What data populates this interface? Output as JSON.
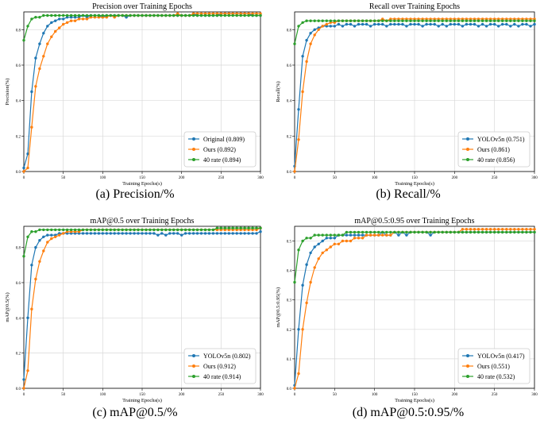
{
  "chart_data": [
    {
      "type": "line",
      "title": "Precision over Training Epochs",
      "xlabel": "Training Epochs(s)",
      "ylabel": "Precision(%)",
      "caption": "(a) Precision/%",
      "xlim": [
        0,
        300
      ],
      "ylim": [
        0,
        0.9
      ],
      "xticks": [
        "0",
        "50",
        "100",
        "150",
        "200",
        "250",
        "300"
      ],
      "yticks": [
        "0.0",
        "0.2",
        "0.4",
        "0.6",
        "0.8"
      ],
      "grid": true,
      "legend_position": "bottom-right",
      "x_start": 0,
      "x_end": 300,
      "step": 5,
      "series": [
        {
          "name": "Original (0.809)",
          "color": "#1f77b4",
          "values": [
            0.02,
            0.1,
            0.45,
            0.64,
            0.72,
            0.78,
            0.82,
            0.84,
            0.85,
            0.86,
            0.86,
            0.87,
            0.87,
            0.87,
            0.87,
            0.88,
            0.87,
            0.88,
            0.88,
            0.88,
            0.87,
            0.88,
            0.88,
            0.88,
            0.88,
            0.88,
            0.87,
            0.88,
            0.88,
            0.88,
            0.88,
            0.88,
            0.88,
            0.88,
            0.88,
            0.88,
            0.88,
            0.88,
            0.88,
            0.88,
            0.88,
            0.88,
            0.88,
            0.89,
            0.88,
            0.88,
            0.88,
            0.88,
            0.88,
            0.88,
            0.89,
            0.89,
            0.89,
            0.89,
            0.89,
            0.89,
            0.89,
            0.89,
            0.88,
            0.88,
            0.88
          ]
        },
        {
          "name": "Ours (0.892)",
          "color": "#ff7f0e",
          "values": [
            0.0,
            0.02,
            0.25,
            0.48,
            0.58,
            0.65,
            0.72,
            0.76,
            0.79,
            0.81,
            0.83,
            0.84,
            0.85,
            0.85,
            0.86,
            0.86,
            0.86,
            0.87,
            0.87,
            0.87,
            0.87,
            0.87,
            0.88,
            0.87,
            0.88,
            0.88,
            0.88,
            0.88,
            0.88,
            0.88,
            0.88,
            0.88,
            0.88,
            0.88,
            0.88,
            0.88,
            0.88,
            0.88,
            0.88,
            0.89,
            0.88,
            0.88,
            0.88,
            0.89,
            0.89,
            0.89,
            0.89,
            0.89,
            0.89,
            0.89,
            0.89,
            0.89,
            0.89,
            0.89,
            0.89,
            0.89,
            0.89,
            0.89,
            0.89,
            0.89,
            0.89
          ]
        },
        {
          "name": "40  rate (0.894)",
          "color": "#2ca02c",
          "values": [
            0.74,
            0.82,
            0.86,
            0.87,
            0.87,
            0.88,
            0.88,
            0.88,
            0.88,
            0.88,
            0.88,
            0.88,
            0.88,
            0.88,
            0.88,
            0.88,
            0.88,
            0.88,
            0.88,
            0.88,
            0.88,
            0.88,
            0.88,
            0.88,
            0.88,
            0.88,
            0.88,
            0.88,
            0.88,
            0.88,
            0.88,
            0.88,
            0.88,
            0.88,
            0.88,
            0.88,
            0.88,
            0.88,
            0.88,
            0.88,
            0.88,
            0.88,
            0.88,
            0.88,
            0.88,
            0.88,
            0.88,
            0.88,
            0.88,
            0.88,
            0.88,
            0.88,
            0.88,
            0.88,
            0.88,
            0.88,
            0.88,
            0.88,
            0.88,
            0.88,
            0.88
          ]
        }
      ]
    },
    {
      "type": "line",
      "title": "Recall over Training Epochs",
      "xlabel": "Training Epochs(s)",
      "ylabel": "Recall(%)",
      "caption": "(b) Recall/%",
      "xlim": [
        0,
        300
      ],
      "ylim": [
        0,
        0.9
      ],
      "xticks": [
        "0",
        "50",
        "100",
        "150",
        "200",
        "250",
        "300"
      ],
      "yticks": [
        "0.0",
        "0.2",
        "0.4",
        "0.6",
        "0.8"
      ],
      "grid": true,
      "legend_position": "bottom-right",
      "x_start": 0,
      "x_end": 300,
      "step": 5,
      "series": [
        {
          "name": "YOLOv5n (0.751)",
          "color": "#1f77b4",
          "values": [
            0.03,
            0.35,
            0.65,
            0.74,
            0.78,
            0.8,
            0.81,
            0.82,
            0.82,
            0.82,
            0.82,
            0.83,
            0.82,
            0.83,
            0.83,
            0.82,
            0.83,
            0.83,
            0.83,
            0.82,
            0.83,
            0.83,
            0.83,
            0.82,
            0.83,
            0.83,
            0.83,
            0.83,
            0.82,
            0.83,
            0.83,
            0.83,
            0.82,
            0.83,
            0.83,
            0.83,
            0.82,
            0.83,
            0.82,
            0.83,
            0.83,
            0.83,
            0.82,
            0.83,
            0.83,
            0.83,
            0.82,
            0.83,
            0.82,
            0.83,
            0.83,
            0.82,
            0.83,
            0.83,
            0.82,
            0.83,
            0.82,
            0.83,
            0.83,
            0.82,
            0.83
          ]
        },
        {
          "name": "Ours (0.861)",
          "color": "#ff7f0e",
          "values": [
            0.0,
            0.18,
            0.45,
            0.62,
            0.72,
            0.77,
            0.8,
            0.82,
            0.83,
            0.84,
            0.84,
            0.85,
            0.85,
            0.85,
            0.85,
            0.85,
            0.85,
            0.85,
            0.85,
            0.85,
            0.85,
            0.85,
            0.86,
            0.85,
            0.86,
            0.86,
            0.86,
            0.86,
            0.86,
            0.86,
            0.86,
            0.86,
            0.86,
            0.86,
            0.86,
            0.86,
            0.86,
            0.86,
            0.86,
            0.86,
            0.86,
            0.86,
            0.86,
            0.86,
            0.86,
            0.86,
            0.86,
            0.86,
            0.86,
            0.86,
            0.86,
            0.86,
            0.86,
            0.86,
            0.86,
            0.86,
            0.86,
            0.86,
            0.86,
            0.86,
            0.86
          ]
        },
        {
          "name": "40  rate (0.856)",
          "color": "#2ca02c",
          "values": [
            0.72,
            0.82,
            0.84,
            0.85,
            0.85,
            0.85,
            0.85,
            0.85,
            0.85,
            0.85,
            0.85,
            0.85,
            0.85,
            0.85,
            0.85,
            0.85,
            0.85,
            0.85,
            0.85,
            0.85,
            0.85,
            0.85,
            0.85,
            0.85,
            0.85,
            0.85,
            0.85,
            0.85,
            0.85,
            0.85,
            0.85,
            0.85,
            0.85,
            0.85,
            0.85,
            0.85,
            0.85,
            0.85,
            0.85,
            0.85,
            0.85,
            0.85,
            0.85,
            0.85,
            0.85,
            0.85,
            0.85,
            0.85,
            0.85,
            0.85,
            0.85,
            0.85,
            0.85,
            0.85,
            0.85,
            0.85,
            0.85,
            0.85,
            0.85,
            0.85,
            0.85
          ]
        }
      ]
    },
    {
      "type": "line",
      "title": "mAP@0.5 over Training Epochs",
      "xlabel": "Training Epochs(s)",
      "ylabel": "mAP@0.5(%)",
      "caption": "(c) mAP@0.5/%",
      "xlim": [
        0,
        300
      ],
      "ylim": [
        0,
        0.92
      ],
      "xticks": [
        "0",
        "50",
        "100",
        "150",
        "200",
        "250",
        "300"
      ],
      "yticks": [
        "0.0",
        "0.2",
        "0.4",
        "0.6",
        "0.8"
      ],
      "grid": true,
      "legend_position": "bottom-right",
      "x_start": 0,
      "x_end": 300,
      "step": 5,
      "series": [
        {
          "name": "YOLOv5n (0.802)",
          "color": "#1f77b4",
          "values": [
            0.05,
            0.4,
            0.7,
            0.8,
            0.84,
            0.86,
            0.87,
            0.87,
            0.87,
            0.88,
            0.88,
            0.88,
            0.88,
            0.88,
            0.88,
            0.88,
            0.88,
            0.88,
            0.88,
            0.88,
            0.88,
            0.88,
            0.88,
            0.88,
            0.88,
            0.88,
            0.88,
            0.88,
            0.88,
            0.88,
            0.88,
            0.88,
            0.88,
            0.88,
            0.87,
            0.88,
            0.87,
            0.88,
            0.88,
            0.88,
            0.87,
            0.88,
            0.88,
            0.88,
            0.88,
            0.88,
            0.88,
            0.88,
            0.88,
            0.88,
            0.88,
            0.88,
            0.88,
            0.88,
            0.88,
            0.88,
            0.88,
            0.88,
            0.88,
            0.88,
            0.89
          ]
        },
        {
          "name": "Ours (0.912)",
          "color": "#ff7f0e",
          "values": [
            0.0,
            0.1,
            0.45,
            0.62,
            0.72,
            0.78,
            0.83,
            0.85,
            0.86,
            0.87,
            0.88,
            0.89,
            0.89,
            0.89,
            0.89,
            0.9,
            0.9,
            0.9,
            0.9,
            0.9,
            0.9,
            0.9,
            0.9,
            0.9,
            0.9,
            0.9,
            0.9,
            0.9,
            0.9,
            0.9,
            0.9,
            0.9,
            0.9,
            0.9,
            0.9,
            0.9,
            0.9,
            0.9,
            0.9,
            0.9,
            0.9,
            0.9,
            0.9,
            0.9,
            0.9,
            0.9,
            0.9,
            0.9,
            0.9,
            0.9,
            0.9,
            0.9,
            0.9,
            0.9,
            0.9,
            0.9,
            0.9,
            0.9,
            0.9,
            0.9,
            0.91
          ]
        },
        {
          "name": "40  rate (0.914)",
          "color": "#2ca02c",
          "values": [
            0.75,
            0.86,
            0.89,
            0.89,
            0.9,
            0.9,
            0.9,
            0.9,
            0.9,
            0.9,
            0.9,
            0.9,
            0.9,
            0.9,
            0.9,
            0.9,
            0.9,
            0.9,
            0.9,
            0.9,
            0.9,
            0.9,
            0.9,
            0.9,
            0.9,
            0.9,
            0.9,
            0.9,
            0.9,
            0.9,
            0.9,
            0.9,
            0.9,
            0.9,
            0.9,
            0.9,
            0.9,
            0.9,
            0.9,
            0.9,
            0.9,
            0.9,
            0.9,
            0.9,
            0.9,
            0.9,
            0.9,
            0.9,
            0.9,
            0.91,
            0.91,
            0.91,
            0.91,
            0.91,
            0.91,
            0.91,
            0.91,
            0.91,
            0.91,
            0.91,
            0.91
          ]
        }
      ]
    },
    {
      "type": "line",
      "title": "mAP@0.5:0.95 over Training Epochs",
      "xlabel": "Training Epochs(s)",
      "ylabel": "mAP@0.5:0.95(%)",
      "caption": "(d) mAP@0.5:0.95/%",
      "xlim": [
        0,
        300
      ],
      "ylim": [
        0,
        0.55
      ],
      "xticks": [
        "0",
        "50",
        "100",
        "150",
        "200",
        "250",
        "300"
      ],
      "yticks": [
        "0.0",
        "0.1",
        "0.2",
        "0.3",
        "0.4",
        "0.5"
      ],
      "grid": true,
      "legend_position": "bottom-right",
      "x_start": 0,
      "x_end": 300,
      "step": 5,
      "series": [
        {
          "name": "YOLOv5n (0.417)",
          "color": "#1f77b4",
          "values": [
            0.01,
            0.2,
            0.35,
            0.42,
            0.46,
            0.48,
            0.49,
            0.5,
            0.51,
            0.51,
            0.51,
            0.52,
            0.52,
            0.52,
            0.52,
            0.52,
            0.52,
            0.52,
            0.52,
            0.52,
            0.52,
            0.52,
            0.53,
            0.52,
            0.52,
            0.53,
            0.52,
            0.53,
            0.52,
            0.53,
            0.53,
            0.53,
            0.53,
            0.53,
            0.52,
            0.53,
            0.53,
            0.53,
            0.53,
            0.53,
            0.53,
            0.53,
            0.53,
            0.53,
            0.53,
            0.53,
            0.53,
            0.53,
            0.53,
            0.53,
            0.53,
            0.53,
            0.53,
            0.53,
            0.53,
            0.53,
            0.53,
            0.53,
            0.53,
            0.53,
            0.53
          ]
        },
        {
          "name": "Ours (0.551)",
          "color": "#ff7f0e",
          "values": [
            0.0,
            0.05,
            0.2,
            0.29,
            0.36,
            0.41,
            0.44,
            0.46,
            0.47,
            0.48,
            0.49,
            0.49,
            0.5,
            0.5,
            0.5,
            0.51,
            0.51,
            0.51,
            0.52,
            0.52,
            0.52,
            0.52,
            0.52,
            0.52,
            0.52,
            0.53,
            0.53,
            0.53,
            0.53,
            0.53,
            0.53,
            0.53,
            0.53,
            0.53,
            0.53,
            0.53,
            0.53,
            0.53,
            0.53,
            0.53,
            0.53,
            0.53,
            0.54,
            0.54,
            0.54,
            0.54,
            0.54,
            0.54,
            0.54,
            0.54,
            0.54,
            0.54,
            0.54,
            0.54,
            0.54,
            0.54,
            0.54,
            0.54,
            0.54,
            0.54,
            0.54
          ]
        },
        {
          "name": "40  rate (0.532)",
          "color": "#2ca02c",
          "values": [
            0.36,
            0.47,
            0.5,
            0.51,
            0.51,
            0.52,
            0.52,
            0.52,
            0.52,
            0.52,
            0.52,
            0.52,
            0.52,
            0.53,
            0.53,
            0.53,
            0.53,
            0.53,
            0.53,
            0.53,
            0.53,
            0.53,
            0.53,
            0.53,
            0.53,
            0.53,
            0.53,
            0.53,
            0.53,
            0.53,
            0.53,
            0.53,
            0.53,
            0.53,
            0.53,
            0.53,
            0.53,
            0.53,
            0.53,
            0.53,
            0.53,
            0.53,
            0.53,
            0.53,
            0.53,
            0.53,
            0.53,
            0.53,
            0.53,
            0.53,
            0.53,
            0.53,
            0.53,
            0.53,
            0.53,
            0.53,
            0.53,
            0.53,
            0.53,
            0.53,
            0.53
          ]
        }
      ]
    }
  ]
}
